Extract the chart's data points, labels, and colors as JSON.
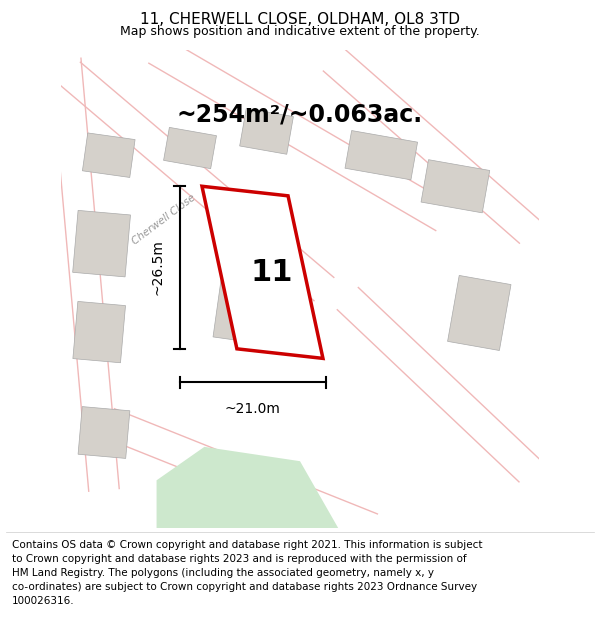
{
  "title": "11, CHERWELL CLOSE, OLDHAM, OL8 3TD",
  "subtitle": "Map shows position and indicative extent of the property.",
  "area_text": "~254m²/~0.063ac.",
  "dim_vertical": "~26.5m",
  "dim_horizontal": "~21.0m",
  "number_label": "11",
  "copyright_text": "Contains OS data © Crown copyright and database right 2021. This information is subject\nto Crown copyright and database rights 2023 and is reproduced with the permission of\nHM Land Registry. The polygons (including the associated geometry, namely x, y\nco-ordinates) are subject to Crown copyright and database rights 2023 Ordnance Survey\n100026316.",
  "map_bg": "#f2f0ed",
  "road_color": "#f0b8b8",
  "property_color": "#cc0000",
  "building_fill": "#d5d1cb",
  "green_fill": "#cde8cd",
  "title_fontsize": 11,
  "subtitle_fontsize": 9,
  "area_fontsize": 17,
  "label_fontsize": 22,
  "dim_fontsize": 10,
  "copyright_fontsize": 7.5
}
